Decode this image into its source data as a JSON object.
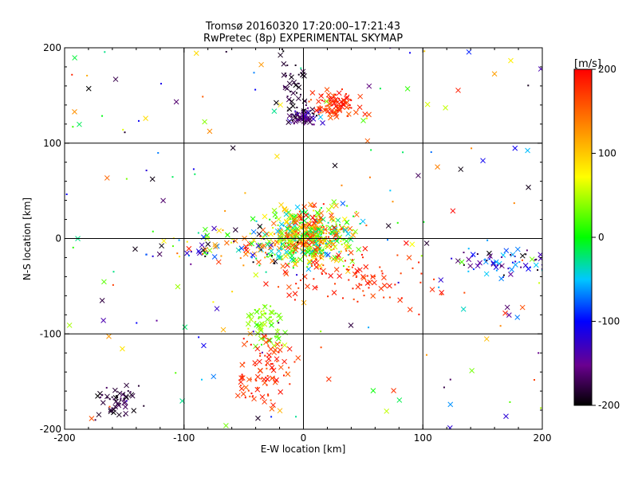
{
  "chart_data": {
    "type": "scatter",
    "title": "Tromsø 20160320 17:20:00–17:21:43",
    "subtitle": "RwPretec (8p) EXPERIMENTAL SKYMAP",
    "xlabel": "E-W location [km]",
    "ylabel": "N-S location [km]",
    "xlim": [
      -200,
      200
    ],
    "ylim": [
      -200,
      200
    ],
    "x_ticks": [
      "-200",
      "-100",
      "0",
      "100",
      "200"
    ],
    "y_ticks": [
      "-200",
      "-100",
      "0",
      "100",
      "200"
    ],
    "grid": true,
    "colorbar": {
      "label": "[m/s]",
      "range": [
        -200,
        200
      ],
      "ticks": [
        "200",
        "100",
        "0",
        "-100",
        "-200"
      ],
      "colormap": "black-purple-blue-cyan-green-yellow-orange-red"
    },
    "marker_legend": "crosses and dots colored by line-of-sight velocity",
    "clusters": [
      {
        "name": "center",
        "center": [
          5,
          2
        ],
        "spread": [
          18,
          14
        ],
        "velocity_range": [
          -60,
          200
        ]
      },
      {
        "name": "north-red",
        "center": [
          27,
          140
        ],
        "spread": [
          9,
          7
        ],
        "velocity_range": [
          150,
          200
        ]
      },
      {
        "name": "north-dark",
        "center": [
          0,
          128
        ],
        "spread": [
          6,
          4
        ],
        "velocity_range": [
          -200,
          -120
        ]
      },
      {
        "name": "north-stem",
        "center": [
          -8,
          160
        ],
        "spread": [
          6,
          20
        ],
        "velocity_range": [
          -200,
          -170
        ]
      },
      {
        "name": "south-green",
        "center": [
          -32,
          -90
        ],
        "spread": [
          7,
          12
        ],
        "velocity_range": [
          10,
          60
        ]
      },
      {
        "name": "south-red",
        "center": [
          -30,
          -140
        ],
        "spread": [
          12,
          20
        ],
        "velocity_range": [
          150,
          200
        ]
      },
      {
        "name": "southwest-dark",
        "center": [
          -155,
          -170
        ],
        "spread": [
          9,
          9
        ],
        "velocity_range": [
          -200,
          -160
        ]
      },
      {
        "name": "east-band",
        "center": [
          170,
          -25
        ],
        "spread": [
          22,
          6
        ],
        "velocity_range": [
          -200,
          -40
        ]
      },
      {
        "name": "southeast-red",
        "center": [
          45,
          -40
        ],
        "spread": [
          35,
          15
        ],
        "velocity_range": [
          160,
          200
        ]
      },
      {
        "name": "west-mixed",
        "center": [
          -60,
          -10
        ],
        "spread": [
          35,
          10
        ],
        "velocity_range": [
          -200,
          200
        ]
      }
    ]
  }
}
